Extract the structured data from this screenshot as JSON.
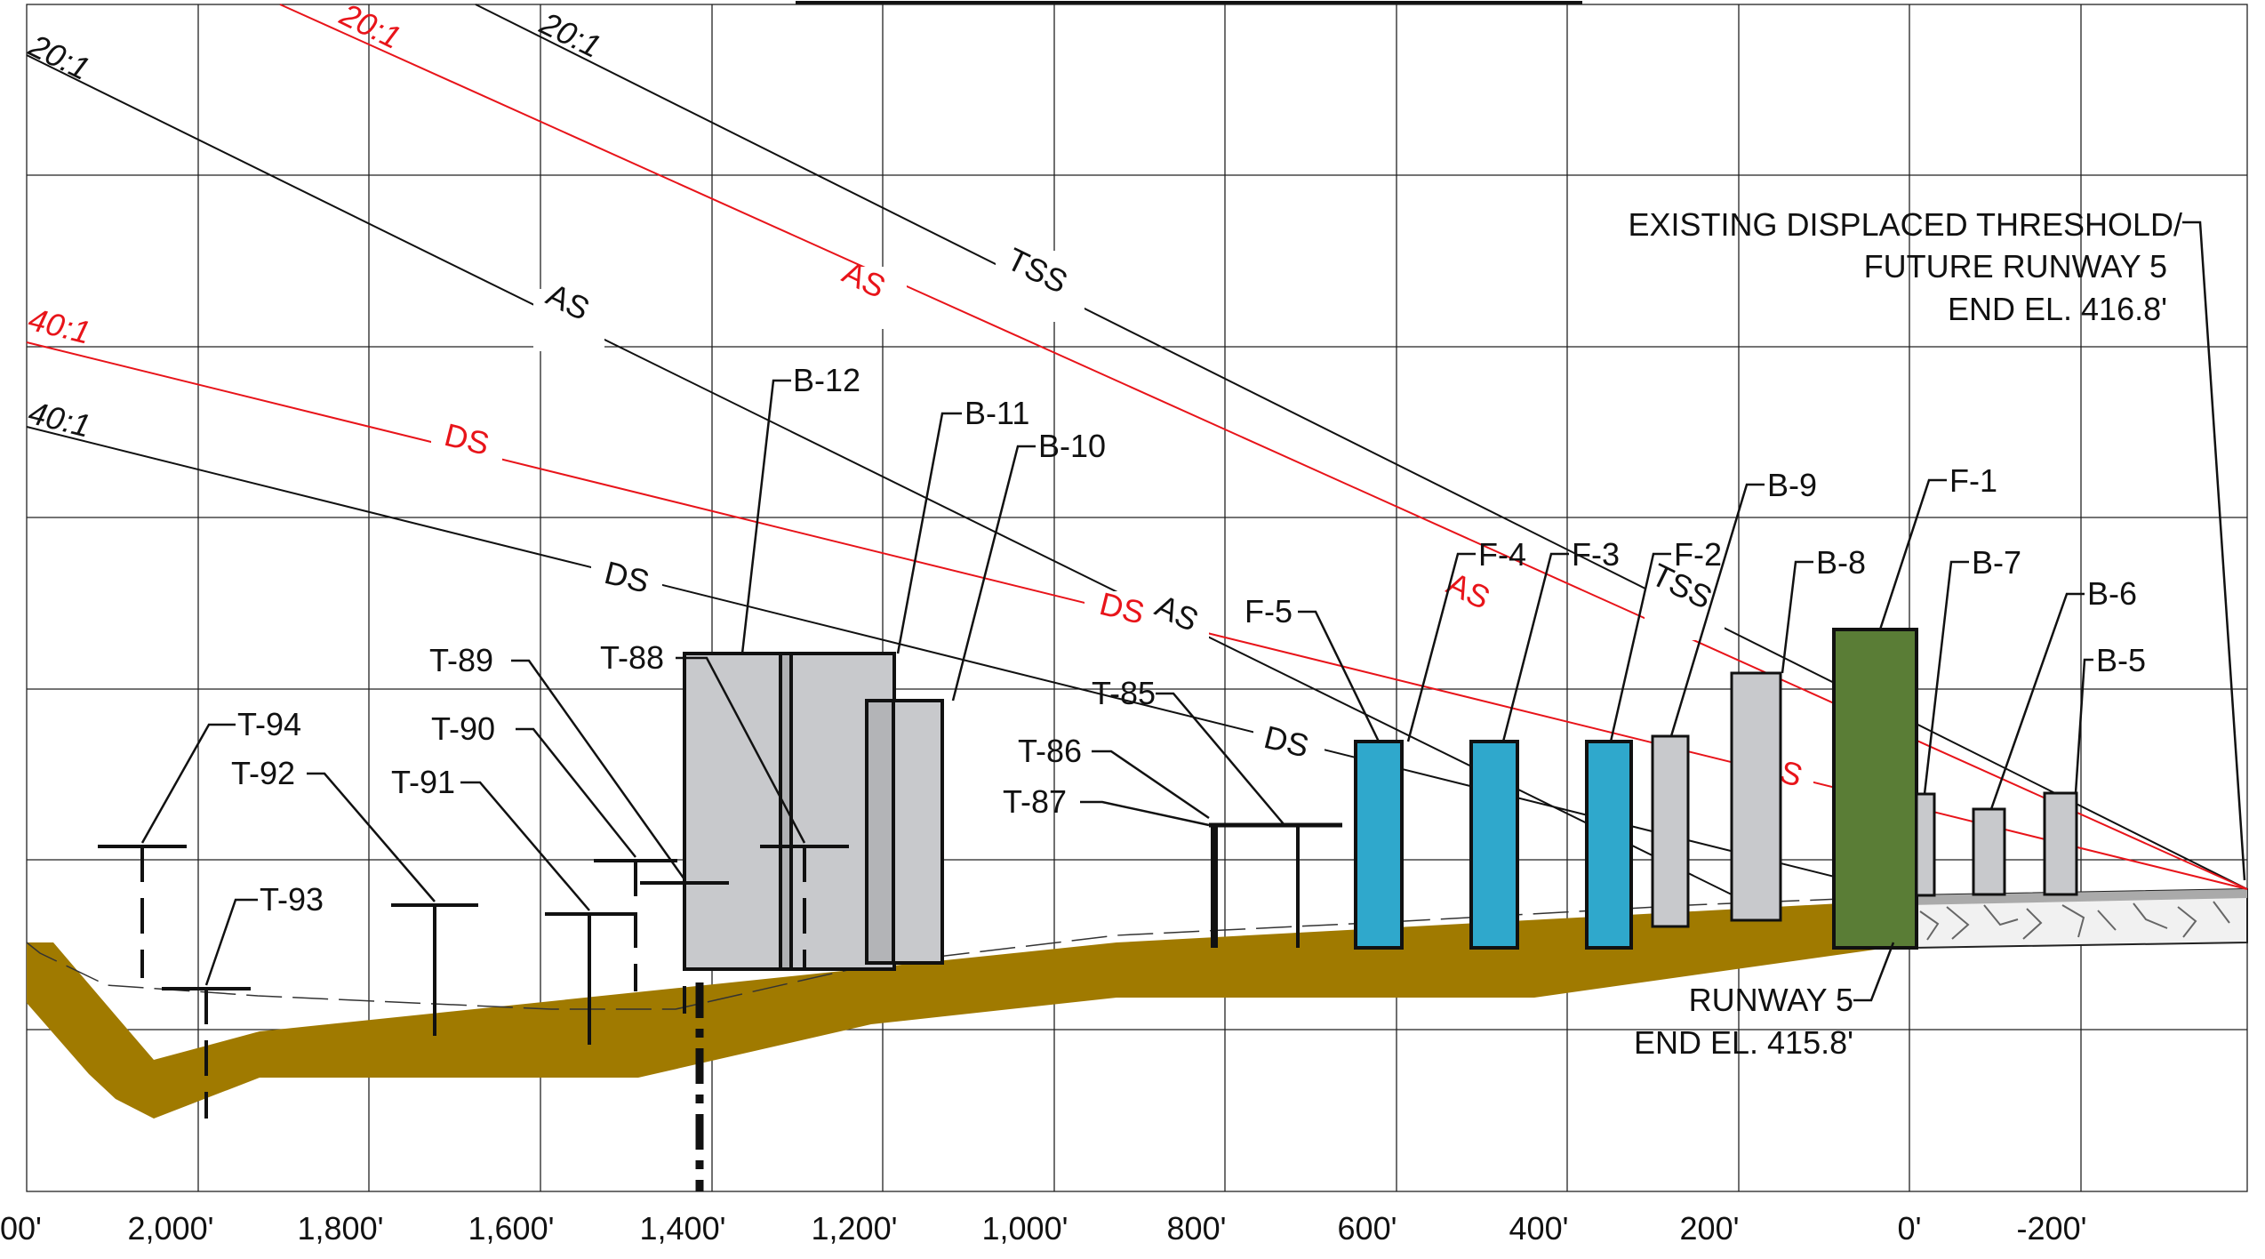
{
  "colors": {
    "black": "#111111",
    "red": "#e8141a",
    "terrain": "#a07a00",
    "building_gray": "#c8c9cc",
    "fuel_blue": "#2fa8cc",
    "fuel_green": "#5a7d36"
  },
  "x_axis_ticks": [
    "00'",
    "2,000'",
    "1,800'",
    "1,600'",
    "1,400'",
    "1,200'",
    "1,000'",
    "800'",
    "600'",
    "400'",
    "200'",
    "0'",
    "-200'"
  ],
  "slopes": {
    "black_20_1_left": "20:1",
    "red_20_1": "20:1",
    "black_20_1_right": "20:1",
    "red_40_1": "40:1",
    "black_40_1": "40:1"
  },
  "surface_labels": {
    "tss_upper": "TSS",
    "tss_lower": "TSS",
    "as_black_upper": "AS",
    "as_black_lower": "AS",
    "as_red_upper": "AS",
    "as_red_lower": "AS",
    "ds_red_upper": "DS",
    "ds_red_lower": "DS",
    "ds_red_mid": "DS",
    "ds_black_upper": "DS",
    "ds_black_lower": "DS"
  },
  "threshold_note": {
    "line1": "EXISTING DISPLACED THRESHOLD/",
    "line2": "FUTURE RUNWAY 5",
    "line3": "END EL. 416.8'"
  },
  "runway_note": {
    "line1": "RUNWAY 5",
    "line2": "END EL. 415.8'"
  },
  "obstacles": {
    "b12": "B-12",
    "b11": "B-11",
    "b10": "B-10",
    "b9": "B-9",
    "b8": "B-8",
    "b7": "B-7",
    "b6": "B-6",
    "b5": "B-5",
    "f1": "F-1",
    "f2": "F-2",
    "f3": "F-3",
    "f4": "F-4",
    "f5": "F-5",
    "t85": "T-85",
    "t86": "T-86",
    "t87": "T-87",
    "t88": "T-88",
    "t89": "T-89",
    "t90": "T-90",
    "t91": "T-91",
    "t92": "T-92",
    "t93": "T-93",
    "t94": "T-94"
  }
}
